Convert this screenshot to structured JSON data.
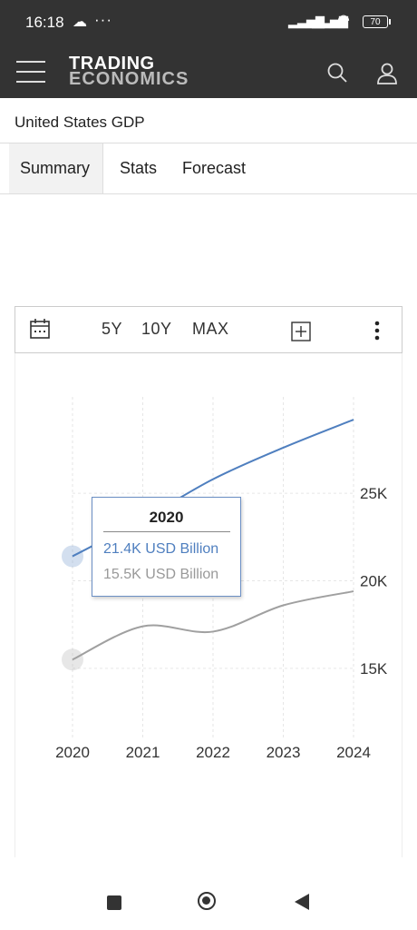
{
  "status_bar": {
    "time": "16:18",
    "dots": "···",
    "battery": "70"
  },
  "header": {
    "logo_line1": "TRADING",
    "logo_line2": "ECONOMICS"
  },
  "page": {
    "title": "United States GDP"
  },
  "tabs": [
    {
      "label": "Summary",
      "active": true
    },
    {
      "label": "Stats"
    },
    {
      "label": "Forecast"
    }
  ],
  "toolbar": {
    "ranges": [
      "5Y",
      "10Y",
      "MAX"
    ]
  },
  "tooltip": {
    "year": "2020",
    "series1": "21.4K USD Billion",
    "series2": "15.5K USD Billion"
  },
  "chart_data": {
    "type": "line",
    "x": [
      "2020",
      "2021",
      "2022",
      "2023",
      "2024"
    ],
    "series": [
      {
        "values": [
          21.4,
          23.5,
          25.8,
          27.6,
          29.2
        ],
        "color": "#4f7fbf"
      },
      {
        "values": [
          15.5,
          17.4,
          17.1,
          18.6,
          19.4
        ],
        "color": "#a0a0a0"
      }
    ],
    "y_ticks": [
      "15K",
      "20K",
      "25K"
    ],
    "y_tick_values": [
      15,
      20,
      25
    ],
    "ylim": [
      10.9,
      30.5
    ],
    "unit": "USD Billion",
    "highlight_index": 0,
    "grid": true
  }
}
